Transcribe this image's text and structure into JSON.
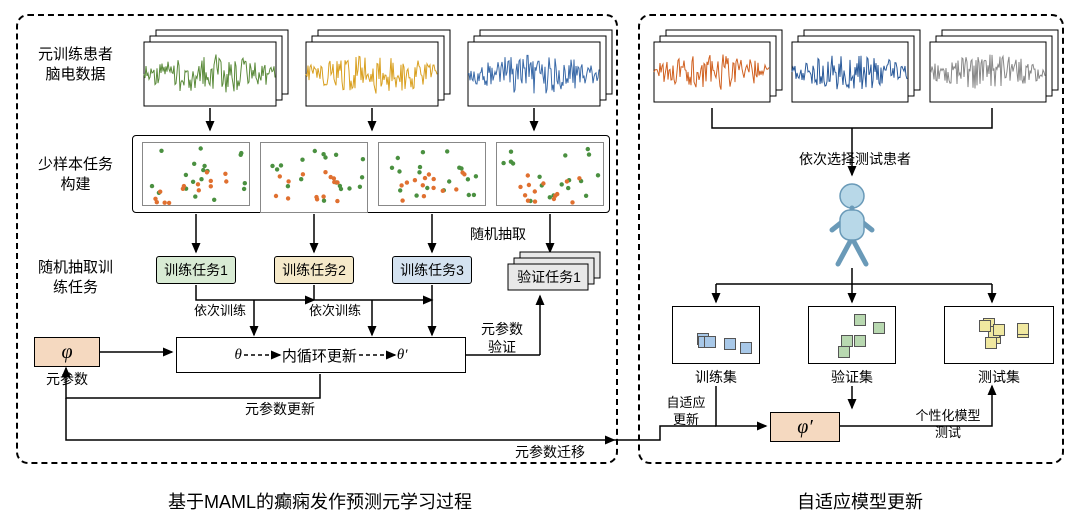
{
  "left": {
    "caption": "基于MAML的癫痫发作预测元学习过程",
    "label_eeg": "元训练患者\n脑电数据",
    "label_task_construct": "少样本任务\n构建",
    "label_random_extract": "随机抽取训\n练任务",
    "label_random_draw": "随机抽取",
    "task1": "训练任务1",
    "task2": "训练任务2",
    "task3": "训练任务3",
    "val_task": "验证任务1",
    "inner_loop_theta": "θ",
    "inner_loop_text": "内循环更新",
    "inner_loop_theta_prime": "θ′",
    "phi": "φ",
    "phi_label": "元参数",
    "seq_train1": "依次训练",
    "seq_train2": "依次训练",
    "meta_param_update": "元参数更新",
    "meta_param_validate": "元参数\n验证",
    "meta_param_transfer": "元参数迁移",
    "wave_colors": [
      "#5a8a3a",
      "#d9a020",
      "#3a6aa8"
    ],
    "scatter_green": "#4a9040",
    "scatter_orange": "#e07030",
    "task_colors": {
      "t1": "#d8ebd4",
      "t2": "#f5e9c9",
      "t3": "#d4e2f0",
      "val": "#e8e8e8"
    },
    "phi_bg": "#f5d9c0"
  },
  "right": {
    "caption": "自适应模型更新",
    "label_select": "依次选择测试患者",
    "train_set": "训练集",
    "val_set": "验证集",
    "test_set": "测试集",
    "adaptive_update": "自适应\n更新",
    "phi_prime": "φ′",
    "personalized_test": "个性化模型\n测试",
    "wave_colors": [
      "#d06020",
      "#2a5a9a",
      "#888888"
    ],
    "set_colors": {
      "train": "#a8c8e8",
      "val": "#b8d8b0",
      "test": "#f0e8a0"
    },
    "phi_bg": "#f5d9c0",
    "person_color": "#b8d8e8"
  }
}
